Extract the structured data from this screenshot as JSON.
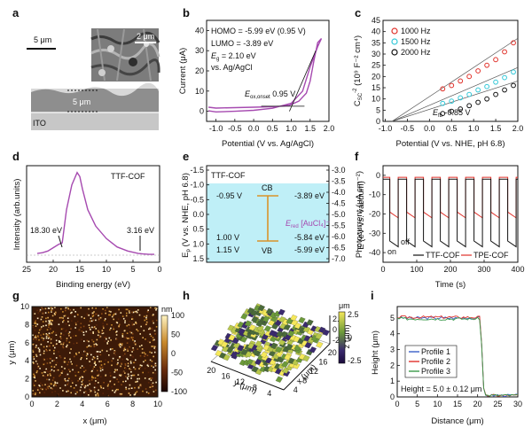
{
  "figure": {
    "panel_labels": [
      "a",
      "b",
      "c",
      "d",
      "e",
      "f",
      "g",
      "h",
      "i"
    ],
    "colors": {
      "purple": "#a64ab0",
      "red": "#e0312a",
      "cyan": "#34c8d8",
      "black": "#111111",
      "blue": "#3a5fc8",
      "green": "#3a9a4a",
      "orange": "#d9932a",
      "cyan_fill": "#bfeff7"
    }
  },
  "panel_a": {
    "scale_top": "5 μm",
    "scale_inset": "2 μm",
    "scale_cross": "5 μm",
    "substrate": "ITO"
  },
  "panel_b": {
    "ylabel": "Current (μA)",
    "xlabel": "Potential (V vs. Ag/AgCl)",
    "xticks": [
      "-1.0",
      "-0.5",
      "0.0",
      "0.5",
      "1.0",
      "1.5",
      "2.0"
    ],
    "yticks": [
      "0",
      "10",
      "20",
      "30",
      "40"
    ],
    "homo": "HOMO = -5.99 eV (0.95 V)",
    "lumo": "LUMO = -3.89 eV",
    "eg": "E",
    "eg_sub": "g",
    "eg_val": " = 2.10 eV",
    "ref": "vs. Ag/AgCl",
    "eox": "E",
    "eox_sub": "ox,onset",
    "eox_val": " 0.95 V"
  },
  "panel_c": {
    "ylabel_main": "C",
    "ylabel_sub": "SC",
    "ylabel_sup": "-2",
    "ylabel_rest": " (10⁹ F⁻² cm⁴)",
    "xlabel": "Potential (V vs. NHE, pH 6.8)",
    "xticks": [
      "-1.0",
      "-0.5",
      "0.0",
      "0.5",
      "1.0",
      "1.5",
      "2.0"
    ],
    "yticks": [
      "0",
      "5",
      "10",
      "15",
      "20",
      "25",
      "30",
      "35",
      "40",
      "45"
    ],
    "legend": [
      "1000 Hz",
      "1500 Hz",
      "2000 Hz"
    ],
    "efb": "E",
    "efb_sub": "fb",
    "efb_val": " -0.85 V"
  },
  "panel_d": {
    "ylabel": "Intensity (arb.units)",
    "xlabel": "Binding energy (eV)",
    "xticks": [
      "25",
      "20",
      "15",
      "10",
      "5",
      "0"
    ],
    "title": "TTF-COF",
    "peak1": "18.30 eV",
    "peak2": "3.16 eV"
  },
  "panel_e": {
    "ylabel_left": "E",
    "ylabel_left_sub": "p",
    "ylabel_left_rest": " (V vs. NHE, pH 6.8)",
    "ylabel_right": "E (eV vs. vacuum)",
    "left_ticks": [
      "-1.5",
      "-1.0",
      "-0.5",
      "0.0",
      "0.5",
      "1.0",
      "1.5"
    ],
    "right_ticks": [
      "-3.0",
      "-3.5",
      "-4.0",
      "-4.5",
      "-5.0",
      "-5.5",
      "-6.0",
      "-6.5",
      "-7.0"
    ],
    "title": "TTF-COF",
    "cb": "CB",
    "vb": "VB",
    "cb_left": "-0.95 V",
    "cb_right": "-3.89 eV",
    "red_left": "1.00 V",
    "red_right": "-5.84 eV",
    "vb_left": "1.15 V",
    "vb_right": "-5.99 eV",
    "ered": "E",
    "ered_sub": "red",
    "ered_rest": " [AuCl₄]⁻"
  },
  "panel_f": {
    "ylabel": "Photocurrent (μA cm⁻²)",
    "xlabel": "Time (s)",
    "xticks": [
      "0",
      "100",
      "200",
      "300",
      "400"
    ],
    "yticks": [
      "0",
      "-10",
      "-20",
      "-30",
      "-40"
    ],
    "on": "on",
    "off": "off",
    "legend": [
      "TTF-COF",
      "TPE-COF"
    ]
  },
  "panel_g": {
    "ylabel": "y (μm)",
    "xlabel": "x (μm)",
    "xticks": [
      "0",
      "2",
      "4",
      "6",
      "8",
      "10"
    ],
    "yticks": [
      "0",
      "2",
      "4",
      "6",
      "8",
      "10"
    ],
    "cbar_unit": "nm",
    "cbar_ticks": [
      "100",
      "50",
      "0",
      "-50",
      "-100"
    ]
  },
  "panel_h": {
    "ylabel": "y (μm)",
    "xlabel": "x (μm)",
    "zlabel": "z (μm)",
    "xticks": [
      "4",
      "8",
      "12",
      "16",
      "20"
    ],
    "yticks": [
      "20",
      "16",
      "12",
      "8",
      "4"
    ],
    "zticks": [
      "2.5",
      "0",
      "-2.5"
    ],
    "cbar_unit": "μm",
    "cbar_ticks": [
      "2.5",
      "0",
      "-2.5"
    ]
  },
  "panel_i": {
    "ylabel": "Height (μm)",
    "xlabel": "Distance (μm)",
    "xticks": [
      "0",
      "5",
      "10",
      "15",
      "20",
      "25",
      "30"
    ],
    "yticks": [
      "0",
      "1",
      "2",
      "3",
      "4",
      "5"
    ],
    "legend": [
      "Profile 1",
      "Profile 2",
      "Profile 3"
    ],
    "height_note": "Height = 5.0 ± 0.12 μm"
  },
  "chart_data": [
    {
      "panel": "b",
      "type": "line",
      "xlabel": "Potential (V vs. Ag/AgCl)",
      "ylabel": "Current (μA)",
      "xlim": [
        -1.5,
        2.0
      ],
      "ylim": [
        -5,
        45
      ],
      "series": [
        {
          "x": [
            -1.2,
            -1.0,
            -0.5,
            0.0,
            0.5,
            0.8,
            0.95,
            1.2,
            1.4,
            1.5,
            1.6,
            1.7,
            1.8,
            1.8,
            1.7,
            1.5,
            1.3,
            1.0,
            0.5,
            0.0,
            -0.5,
            -1.0,
            -1.2
          ],
          "y": [
            2,
            1.6,
            1.8,
            2.0,
            2.3,
            2.6,
            3.0,
            5,
            9,
            15,
            25,
            34,
            36,
            36,
            32,
            22,
            10,
            4,
            1.5,
            0.5,
            0.0,
            -0.3,
            0.2
          ]
        }
      ]
    },
    {
      "panel": "c",
      "type": "scatter",
      "xlabel": "Potential (V vs. NHE, pH 6.8)",
      "xlim": [
        -1.0,
        2.0
      ],
      "ylim": [
        0,
        45
      ],
      "series": [
        {
          "name": "1000 Hz",
          "x": [
            0.3,
            0.5,
            0.7,
            0.9,
            1.1,
            1.3,
            1.5,
            1.7,
            1.9
          ],
          "y": [
            14.5,
            16,
            18,
            20,
            22.5,
            25,
            27.5,
            31,
            35
          ]
        },
        {
          "name": "1500 Hz",
          "x": [
            0.3,
            0.5,
            0.7,
            0.9,
            1.1,
            1.3,
            1.5,
            1.7,
            1.9
          ],
          "y": [
            8,
            9,
            10.5,
            12,
            14,
            15.5,
            17.5,
            19.5,
            22
          ]
        },
        {
          "name": "2000 Hz",
          "x": [
            0.3,
            0.5,
            0.7,
            0.9,
            1.1,
            1.3,
            1.5,
            1.7,
            1.9
          ],
          "y": [
            3.5,
            4.5,
            5.5,
            7,
            8.5,
            10,
            12,
            14,
            16
          ]
        }
      ]
    },
    {
      "panel": "d",
      "type": "line",
      "xlabel": "Binding energy (eV)",
      "ylabel": "Intensity (arb.units)",
      "xlim": [
        25,
        0
      ],
      "series": [
        {
          "x": [
            23,
            22,
            21,
            20,
            19,
            18.3,
            17.5,
            16.5,
            15.5,
            15,
            14.5,
            13.5,
            12,
            10,
            8,
            6,
            4,
            3.16,
            2,
            1
          ],
          "y": [
            0.02,
            0.03,
            0.05,
            0.09,
            0.13,
            0.15,
            0.55,
            0.85,
            1.0,
            0.95,
            0.8,
            0.55,
            0.35,
            0.2,
            0.1,
            0.05,
            0.02,
            0.015,
            0.01,
            0.01
          ]
        }
      ]
    },
    {
      "panel": "f",
      "type": "line",
      "xlabel": "Time (s)",
      "ylabel": "Photocurrent (μA cm⁻²)",
      "xlim": [
        0,
        400
      ],
      "ylim": [
        -45,
        5
      ],
      "on_off_period_s": 50,
      "series": [
        {
          "name": "TTF-COF",
          "on_level": -37,
          "off_level": -2
        },
        {
          "name": "TPE-COF",
          "on_level": -22,
          "off_level": -1
        }
      ]
    },
    {
      "panel": "i",
      "type": "line",
      "xlabel": "Distance (μm)",
      "ylabel": "Height (μm)",
      "xlim": [
        0,
        30
      ],
      "ylim": [
        0,
        5.5
      ],
      "step_at": 21,
      "series": [
        {
          "name": "Profile 1",
          "plateau": 5.0,
          "baseline": 0.1
        },
        {
          "name": "Profile 2",
          "plateau": 5.05,
          "baseline": 0.1
        },
        {
          "name": "Profile 3",
          "plateau": 4.95,
          "baseline": 0.1
        }
      ]
    }
  ]
}
